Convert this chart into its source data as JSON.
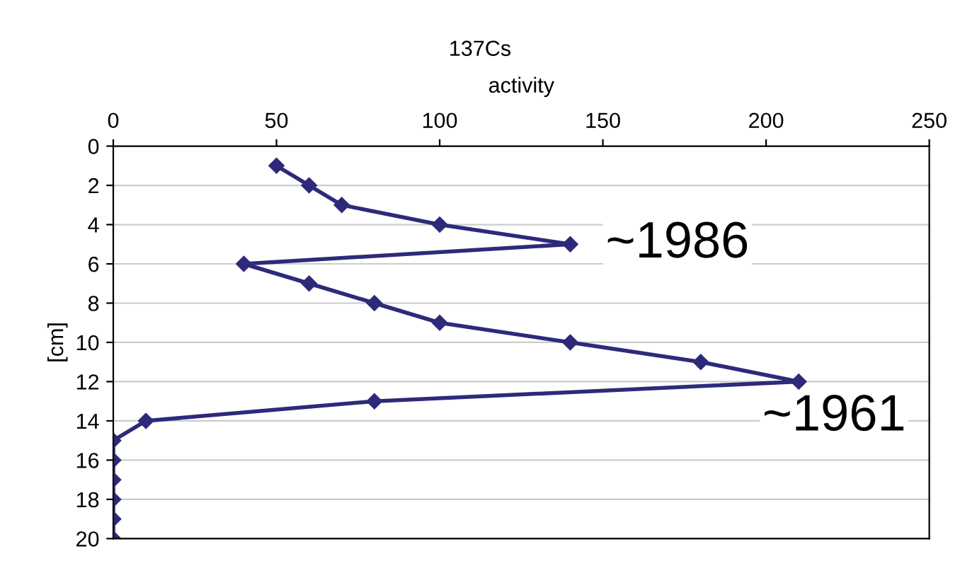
{
  "chart_data": {
    "type": "line",
    "title": "137Cs",
    "xlabel": "activity",
    "ylabel": "[cm]",
    "x": [
      50,
      60,
      70,
      100,
      140,
      40,
      60,
      80,
      100,
      140,
      180,
      210,
      80,
      10,
      0,
      0,
      0,
      0,
      0,
      0
    ],
    "series": [
      {
        "color": "#2e2a7a",
        "values": [
          1,
          2,
          3,
          4,
          5,
          6,
          7,
          8,
          9,
          10,
          11,
          12,
          13,
          14,
          15,
          16,
          17,
          18,
          19,
          20
        ]
      }
    ],
    "xlim": [
      0,
      250
    ],
    "xticks": [
      0,
      50,
      100,
      150,
      200,
      250
    ],
    "ylim": [
      20,
      0
    ],
    "yticks": [
      0,
      2,
      4,
      6,
      8,
      10,
      12,
      14,
      16,
      18,
      20
    ],
    "grid": "y",
    "marker": "diamond",
    "line_style": "solid",
    "annotations": [
      {
        "text": "~1986",
        "x": 140,
        "y": 5
      },
      {
        "text": "~1961",
        "x": 210,
        "y": 12
      }
    ]
  }
}
